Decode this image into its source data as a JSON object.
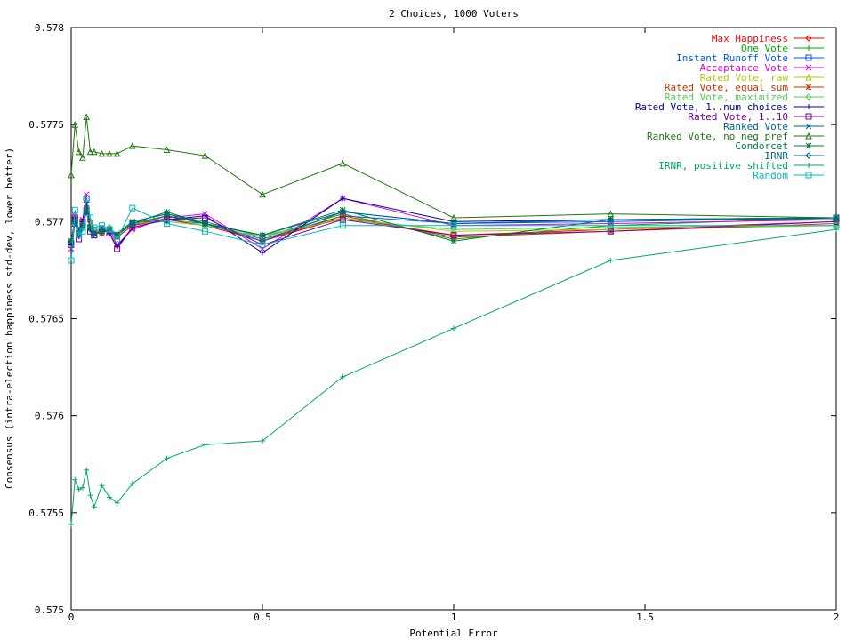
{
  "chart_data": {
    "type": "line",
    "title": "2 Choices, 1000 Voters",
    "xlabel": "Potential Error",
    "ylabel": "Consensus (intra-election happiness std-dev, lower better)",
    "xlim": [
      0,
      2
    ],
    "ylim": [
      0.575,
      0.578
    ],
    "xticks": [
      "0",
      "0.5",
      "1",
      "1.5",
      "2"
    ],
    "yticks": [
      "0.575",
      "0.5755",
      "0.576",
      "0.5765",
      "0.577",
      "0.5775",
      "0.578"
    ],
    "grid": false,
    "legend_position": "top-right",
    "x": [
      0,
      0.01,
      0.02,
      0.03,
      0.04,
      0.05,
      0.06,
      0.08,
      0.1,
      0.12,
      0.16,
      0.25,
      0.35,
      0.5,
      0.71,
      1,
      1.41,
      2
    ],
    "series": [
      {
        "name": "Max Happiness",
        "color": "#ff0000",
        "marker": "diamond",
        "values": [
          0.5769,
          0.57702,
          0.57695,
          0.57698,
          0.57705,
          0.577,
          0.57696,
          0.57694,
          0.57697,
          0.57692,
          0.57698,
          0.57701,
          0.57698,
          0.5769,
          0.57702,
          0.57693,
          0.57696,
          0.577
        ]
      },
      {
        "name": "One Vote",
        "color": "#00aa00",
        "marker": "plus",
        "values": [
          0.5769,
          0.577,
          0.57696,
          0.57699,
          0.57708,
          0.57698,
          0.57694,
          0.57695,
          0.57696,
          0.57694,
          0.577,
          0.57704,
          0.577,
          0.57692,
          0.57704,
          0.57691,
          0.57698,
          0.57702
        ]
      },
      {
        "name": "Instant Runoff Vote",
        "color": "#0055ff",
        "marker": "square",
        "values": [
          0.57688,
          0.57699,
          0.57694,
          0.57697,
          0.57706,
          0.57697,
          0.57693,
          0.57696,
          0.57695,
          0.57693,
          0.57699,
          0.57701,
          0.57699,
          0.57691,
          0.57703,
          0.57699,
          0.577,
          0.57702
        ]
      },
      {
        "name": "Acceptance Vote",
        "color": "#dd00dd",
        "marker": "x",
        "values": [
          0.57686,
          0.57703,
          0.57696,
          0.57701,
          0.57714,
          0.57697,
          0.57694,
          0.57697,
          0.57696,
          0.57688,
          0.57696,
          0.57702,
          0.57704,
          0.57686,
          0.57712,
          0.57698,
          0.57699,
          0.57701
        ]
      },
      {
        "name": "Rated Vote, raw",
        "color": "#aacc00",
        "marker": "triangle",
        "values": [
          0.57689,
          0.577,
          0.57695,
          0.57698,
          0.57706,
          0.57698,
          0.57695,
          0.57695,
          0.57697,
          0.57693,
          0.57699,
          0.57702,
          0.57698,
          0.57692,
          0.57702,
          0.57695,
          0.57696,
          0.57698
        ]
      },
      {
        "name": "Rated Vote, equal sum",
        "color": "#cc3300",
        "marker": "star",
        "values": [
          0.57689,
          0.57701,
          0.57694,
          0.57699,
          0.57707,
          0.57697,
          0.57694,
          0.57694,
          0.57696,
          0.57692,
          0.57698,
          0.57703,
          0.57699,
          0.5769,
          0.57703,
          0.57692,
          0.57695,
          0.57699
        ]
      },
      {
        "name": "Rated Vote, maximized",
        "color": "#55cc55",
        "marker": "diamond",
        "values": [
          0.5769,
          0.577,
          0.57694,
          0.57697,
          0.57705,
          0.57697,
          0.57695,
          0.57696,
          0.57697,
          0.57693,
          0.57699,
          0.577,
          0.57698,
          0.57693,
          0.57701,
          0.57696,
          0.57697,
          0.57698
        ]
      },
      {
        "name": "Rated Vote, 1..num choices",
        "color": "#000099",
        "marker": "plus",
        "values": [
          0.57688,
          0.57702,
          0.57695,
          0.577,
          0.5771,
          0.57696,
          0.57693,
          0.57696,
          0.57694,
          0.57687,
          0.57697,
          0.57701,
          0.57703,
          0.57684,
          0.57712,
          0.577,
          0.57701,
          0.57702
        ]
      },
      {
        "name": "Rated Vote, 1..10",
        "color": "#7700aa",
        "marker": "square",
        "values": [
          0.5768,
          0.57702,
          0.57691,
          0.577,
          0.57712,
          0.57695,
          0.57693,
          0.57696,
          0.57694,
          0.57686,
          0.57697,
          0.57701,
          0.57702,
          0.57688,
          0.57701,
          0.57693,
          0.57695,
          0.577
        ]
      },
      {
        "name": "Ranked Vote",
        "color": "#006699",
        "marker": "x",
        "values": [
          0.5769,
          0.577,
          0.57695,
          0.57698,
          0.57706,
          0.57697,
          0.57694,
          0.57695,
          0.57696,
          0.57693,
          0.577,
          0.57704,
          0.57699,
          0.5769,
          0.57705,
          0.57699,
          0.57701,
          0.57702
        ]
      },
      {
        "name": "Ranked Vote, no neg pref",
        "color": "#227711",
        "marker": "triangle",
        "values": [
          0.57724,
          0.5775,
          0.57736,
          0.57733,
          0.57754,
          0.57736,
          0.57736,
          0.57735,
          0.57735,
          0.57735,
          0.57739,
          0.57737,
          0.57734,
          0.57714,
          0.5773,
          0.57702,
          0.57704,
          0.57702
        ]
      },
      {
        "name": "Condorcet",
        "color": "#007744",
        "marker": "star",
        "values": [
          0.5769,
          0.577,
          0.57694,
          0.57698,
          0.57706,
          0.57697,
          0.57694,
          0.57695,
          0.57696,
          0.57693,
          0.57699,
          0.57705,
          0.57699,
          0.57693,
          0.57706,
          0.5769,
          0.57701,
          0.57702
        ]
      },
      {
        "name": "IRNR",
        "color": "#006688",
        "marker": "diamond",
        "values": [
          0.5769,
          0.577,
          0.57694,
          0.57698,
          0.57705,
          0.57696,
          0.57694,
          0.57695,
          0.57696,
          0.57693,
          0.57699,
          0.57703,
          0.57699,
          0.57693,
          0.57705,
          0.57699,
          0.57701,
          0.57701
        ]
      },
      {
        "name": "IRNR, positive shifted",
        "color": "#00aa66",
        "marker": "plus",
        "values": [
          0.57544,
          0.57567,
          0.57562,
          0.57563,
          0.57572,
          0.57559,
          0.57553,
          0.57564,
          0.57558,
          0.57555,
          0.57565,
          0.57578,
          0.57585,
          0.57587,
          0.5762,
          0.57645,
          0.5768,
          0.57696
        ]
      },
      {
        "name": "Random",
        "color": "#00bbbb",
        "marker": "square",
        "values": [
          0.5768,
          0.57706,
          0.57693,
          0.57695,
          0.57712,
          0.57702,
          0.57697,
          0.57698,
          0.57696,
          0.57691,
          0.57707,
          0.57699,
          0.57695,
          0.57688,
          0.57698,
          0.57698,
          0.57698,
          0.57698
        ]
      }
    ]
  }
}
